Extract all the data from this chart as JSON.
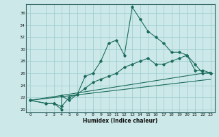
{
  "title": "",
  "xlabel": "Humidex (Indice chaleur)",
  "bg_color": "#cce8e8",
  "grid_color": "#99cccc",
  "line_color": "#1a6b5a",
  "xlim": [
    -0.5,
    23.5
  ],
  "ylim": [
    19.5,
    37.5
  ],
  "yticks": [
    20,
    22,
    24,
    26,
    28,
    30,
    32,
    34,
    36
  ],
  "xticks": [
    0,
    2,
    3,
    4,
    5,
    6,
    7,
    8,
    9,
    10,
    11,
    12,
    13,
    14,
    15,
    16,
    17,
    18,
    19,
    20,
    21,
    22,
    23
  ],
  "line1_x": [
    0,
    2,
    3,
    4,
    4,
    5,
    6,
    7,
    8,
    9,
    10,
    11,
    12,
    13,
    14,
    15,
    16,
    17,
    18,
    19,
    20,
    21,
    22,
    23
  ],
  "line1_y": [
    21.5,
    21.0,
    21.0,
    20.0,
    22.2,
    21.5,
    22.5,
    25.5,
    26.0,
    28.0,
    31.0,
    31.5,
    29.0,
    37.0,
    35.0,
    33.0,
    32.0,
    31.0,
    29.5,
    29.5,
    29.0,
    27.5,
    26.0,
    26.0
  ],
  "line2_x": [
    0,
    2,
    3,
    4,
    5,
    6,
    7,
    8,
    9,
    10,
    11,
    12,
    13,
    14,
    15,
    16,
    17,
    18,
    19,
    20,
    21,
    22,
    23
  ],
  "line2_y": [
    21.5,
    21.0,
    21.0,
    20.5,
    22.0,
    22.5,
    23.5,
    24.5,
    25.0,
    25.5,
    26.0,
    27.0,
    27.5,
    28.0,
    28.5,
    27.5,
    27.5,
    28.0,
    28.5,
    29.0,
    26.5,
    26.5,
    26.0
  ],
  "line3_x": [
    0,
    23
  ],
  "line3_y": [
    21.5,
    26.2
  ],
  "line4_x": [
    0,
    23
  ],
  "line4_y": [
    21.5,
    25.0
  ]
}
